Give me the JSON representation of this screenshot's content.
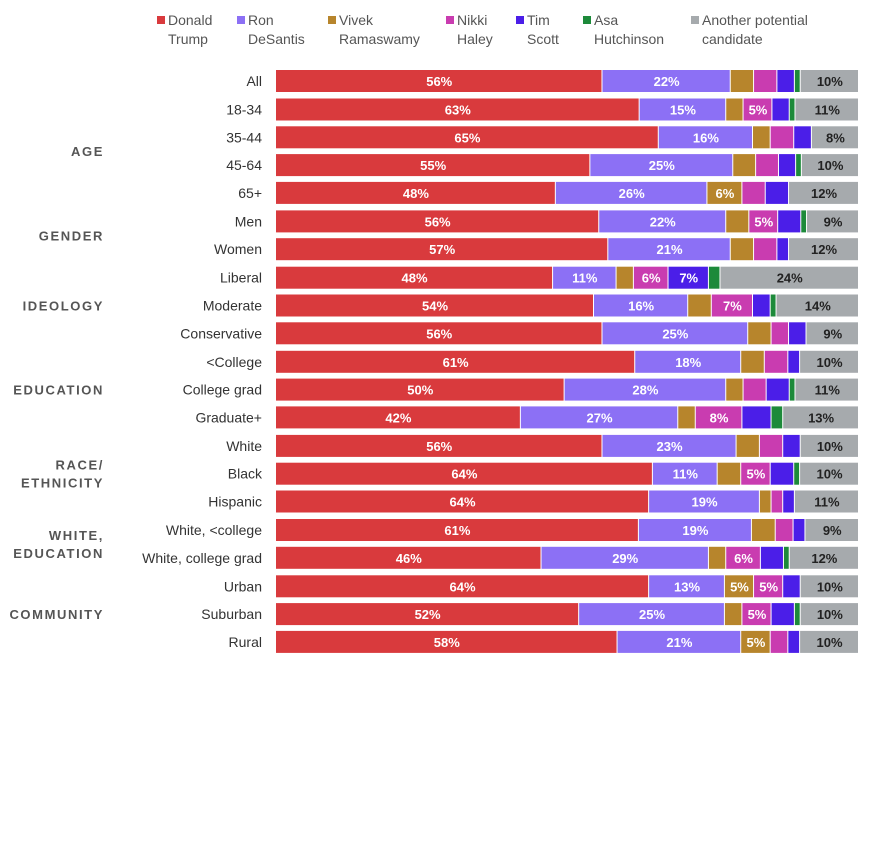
{
  "chart_data": {
    "type": "bar",
    "stacked": true,
    "orientation": "horizontal",
    "normalized_to_percent": true,
    "series": [
      {
        "name": "Donald Trump",
        "legend_lines": [
          "Donald",
          "Trump"
        ],
        "color": "#d93a3d",
        "text_color": "#ffffff"
      },
      {
        "name": "Ron DeSantis",
        "legend_lines": [
          "Ron",
          "DeSantis"
        ],
        "color": "#8c70f5",
        "text_color": "#ffffff"
      },
      {
        "name": "Vivek Ramaswamy",
        "legend_lines": [
          "Vivek",
          "Ramaswamy"
        ],
        "color": "#b7852c",
        "text_color": "#ffffff"
      },
      {
        "name": "Nikki Haley",
        "legend_lines": [
          "Nikki",
          "Haley"
        ],
        "color": "#c93cb0",
        "text_color": "#ffffff"
      },
      {
        "name": "Tim Scott",
        "legend_lines": [
          "Tim",
          "Scott"
        ],
        "color": "#4b1ee8",
        "text_color": "#ffffff"
      },
      {
        "name": "Asa Hutchinson",
        "legend_lines": [
          "Asa",
          "Hutchinson"
        ],
        "color": "#1d8a3a",
        "text_color": "#ffffff"
      },
      {
        "name": "Another potential candidate",
        "legend_lines": [
          "Another potential",
          "candidate"
        ],
        "color": "#a6aaad",
        "text_color": "#222222"
      }
    ],
    "groups": [
      {
        "label_lines": [],
        "rows": [
          {
            "label": "All",
            "values": [
              56,
              22,
              4,
              4,
              3,
              1,
              10
            ],
            "labels": [
              "56%",
              "22%",
              "",
              "",
              "",
              "",
              "10%"
            ]
          }
        ]
      },
      {
        "label_lines": [
          "AGE"
        ],
        "rows": [
          {
            "label": "18-34",
            "values": [
              63,
              15,
              3,
              5,
              3,
              1,
              11
            ],
            "labels": [
              "63%",
              "15%",
              "",
              "5%",
              "",
              "",
              "11%"
            ]
          },
          {
            "label": "35-44",
            "values": [
              65,
              16,
              3,
              4,
              3,
              0,
              8
            ],
            "labels": [
              "65%",
              "16%",
              "",
              "",
              "",
              "",
              "8%"
            ]
          },
          {
            "label": "45-64",
            "values": [
              55,
              25,
              4,
              4,
              3,
              1,
              10
            ],
            "labels": [
              "55%",
              "25%",
              "",
              "",
              "",
              "",
              "10%"
            ]
          },
          {
            "label": "65+",
            "values": [
              48,
              26,
              6,
              4,
              4,
              0,
              12
            ],
            "labels": [
              "48%",
              "26%",
              "6%",
              "",
              "",
              "",
              "12%"
            ]
          }
        ]
      },
      {
        "label_lines": [
          "GENDER"
        ],
        "rows": [
          {
            "label": "Men",
            "values": [
              56,
              22,
              4,
              5,
              4,
              1,
              9
            ],
            "labels": [
              "56%",
              "22%",
              "",
              "5%",
              "",
              "",
              "9%"
            ]
          },
          {
            "label": "Women",
            "values": [
              57,
              21,
              4,
              4,
              2,
              0,
              12
            ],
            "labels": [
              "57%",
              "21%",
              "",
              "",
              "",
              "",
              "12%"
            ]
          }
        ]
      },
      {
        "label_lines": [
          "IDEOLOGY"
        ],
        "rows": [
          {
            "label": "Liberal",
            "values": [
              48,
              11,
              3,
              6,
              7,
              2,
              24
            ],
            "labels": [
              "48%",
              "11%",
              "",
              "6%",
              "7%",
              "",
              "24%"
            ]
          },
          {
            "label": "Moderate",
            "values": [
              54,
              16,
              4,
              7,
              3,
              1,
              14
            ],
            "labels": [
              "54%",
              "16%",
              "",
              "7%",
              "",
              "",
              "14%"
            ]
          },
          {
            "label": "Conservative",
            "values": [
              56,
              25,
              4,
              3,
              3,
              0,
              9
            ],
            "labels": [
              "56%",
              "25%",
              "",
              "",
              "",
              "",
              "9%"
            ]
          }
        ]
      },
      {
        "label_lines": [
          "EDUCATION"
        ],
        "rows": [
          {
            "label": "<College",
            "values": [
              61,
              18,
              4,
              4,
              2,
              0,
              10
            ],
            "labels": [
              "61%",
              "18%",
              "",
              "",
              "",
              "",
              "10%"
            ]
          },
          {
            "label": "College grad",
            "values": [
              50,
              28,
              3,
              4,
              4,
              1,
              11
            ],
            "labels": [
              "50%",
              "28%",
              "",
              "",
              "",
              "",
              "11%"
            ]
          },
          {
            "label": "Graduate+",
            "values": [
              42,
              27,
              3,
              8,
              5,
              2,
              13
            ],
            "labels": [
              "42%",
              "27%",
              "",
              "8%",
              "",
              "",
              "13%"
            ]
          }
        ]
      },
      {
        "label_lines": [
          "RACE/",
          "ETHNICITY"
        ],
        "rows": [
          {
            "label": "White",
            "values": [
              56,
              23,
              4,
              4,
              3,
              0,
              10
            ],
            "labels": [
              "56%",
              "23%",
              "",
              "",
              "",
              "",
              "10%"
            ]
          },
          {
            "label": "Black",
            "values": [
              64,
              11,
              4,
              5,
              4,
              1,
              10
            ],
            "labels": [
              "64%",
              "11%",
              "",
              "5%",
              "",
              "",
              "10%"
            ]
          },
          {
            "label": "Hispanic",
            "values": [
              64,
              19,
              2,
              2,
              2,
              0,
              11
            ],
            "labels": [
              "64%",
              "19%",
              "",
              "",
              "",
              "",
              "11%"
            ]
          }
        ]
      },
      {
        "label_lines": [
          "WHITE,",
          "EDUCATION"
        ],
        "rows": [
          {
            "label": "White, <college",
            "values": [
              61,
              19,
              4,
              3,
              2,
              0,
              9
            ],
            "labels": [
              "61%",
              "19%",
              "",
              "",
              "",
              "",
              "9%"
            ]
          },
          {
            "label": "White, college grad",
            "values": [
              46,
              29,
              3,
              6,
              4,
              1,
              12
            ],
            "labels": [
              "46%",
              "29%",
              "",
              "6%",
              "",
              "",
              "12%"
            ]
          }
        ]
      },
      {
        "label_lines": [
          "COMMUNITY"
        ],
        "rows": [
          {
            "label": "Urban",
            "values": [
              64,
              13,
              5,
              5,
              3,
              0,
              10
            ],
            "labels": [
              "64%",
              "13%",
              "5%",
              "5%",
              "",
              "",
              "10%"
            ]
          },
          {
            "label": "Suburban",
            "values": [
              52,
              25,
              3,
              5,
              4,
              1,
              10
            ],
            "labels": [
              "52%",
              "25%",
              "",
              "5%",
              "",
              "",
              "10%"
            ]
          },
          {
            "label": "Rural",
            "values": [
              58,
              21,
              5,
              3,
              2,
              0,
              10
            ],
            "labels": [
              "58%",
              "21%",
              "5%",
              "",
              "",
              "",
              "10%"
            ]
          }
        ]
      }
    ]
  }
}
